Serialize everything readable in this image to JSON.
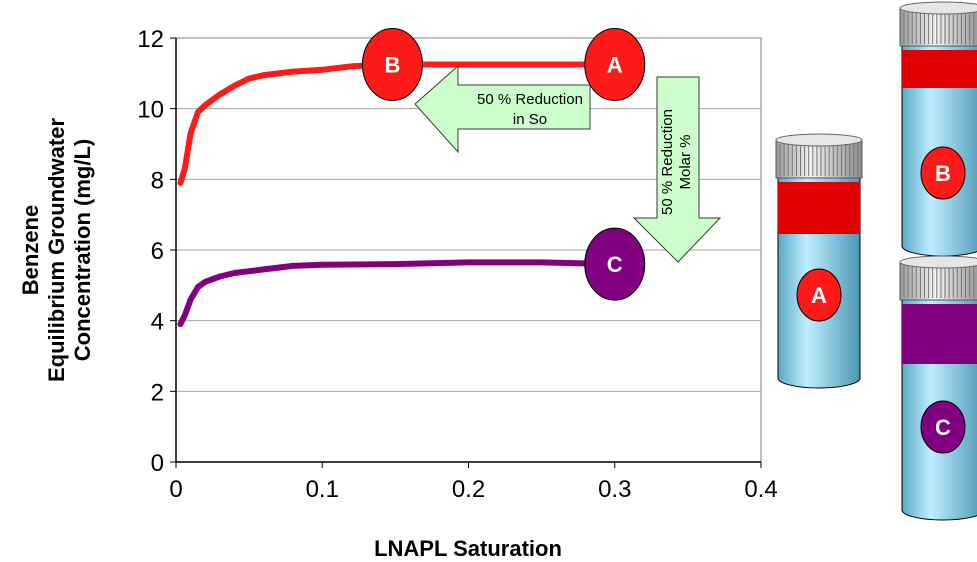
{
  "chart_data": {
    "type": "line",
    "xlabel": "LNAPL Saturation",
    "ylabel_lines": [
      "Benzene",
      "Equilibrium Groundwater",
      "Concentration (mg/L)"
    ],
    "xlim": [
      0,
      0.4
    ],
    "ylim": [
      0,
      12
    ],
    "x_ticks": [
      "0",
      "0.1",
      "0.2",
      "0.3",
      "0.4"
    ],
    "y_ticks": [
      "0",
      "2",
      "4",
      "6",
      "8",
      "10",
      "12"
    ],
    "grid": "horizontal",
    "series": [
      {
        "color": "#ff1a1a",
        "points": [
          [
            0.003,
            7.9
          ],
          [
            0.006,
            8.3
          ],
          [
            0.01,
            9.3
          ],
          [
            0.015,
            9.9
          ],
          [
            0.02,
            10.1
          ],
          [
            0.03,
            10.4
          ],
          [
            0.04,
            10.65
          ],
          [
            0.05,
            10.85
          ],
          [
            0.06,
            10.95
          ],
          [
            0.08,
            11.05
          ],
          [
            0.1,
            11.1
          ],
          [
            0.12,
            11.2
          ],
          [
            0.15,
            11.25
          ],
          [
            0.2,
            11.25
          ],
          [
            0.25,
            11.25
          ],
          [
            0.3,
            11.25
          ]
        ]
      },
      {
        "color": "#800080",
        "points": [
          [
            0.003,
            3.9
          ],
          [
            0.006,
            4.15
          ],
          [
            0.01,
            4.6
          ],
          [
            0.015,
            4.95
          ],
          [
            0.02,
            5.1
          ],
          [
            0.03,
            5.25
          ],
          [
            0.04,
            5.35
          ],
          [
            0.05,
            5.4
          ],
          [
            0.06,
            5.45
          ],
          [
            0.08,
            5.55
          ],
          [
            0.1,
            5.58
          ],
          [
            0.15,
            5.6
          ],
          [
            0.2,
            5.65
          ],
          [
            0.25,
            5.65
          ],
          [
            0.3,
            5.6
          ]
        ]
      }
    ],
    "markers": [
      {
        "label": "A",
        "x": 0.3,
        "y": 11.25,
        "fill": "#ff1a1a"
      },
      {
        "label": "B",
        "x": 0.148,
        "y": 11.25,
        "fill": "#ff1a1a"
      },
      {
        "label": "C",
        "x": 0.3,
        "y": 5.6,
        "fill": "#800080"
      }
    ],
    "annotations": [
      {
        "text_lines": [
          "50 % Reduction",
          "in So"
        ],
        "direction": "left",
        "fill": "#ccffcc"
      },
      {
        "text_lines": [
          "50 % Reduction",
          "Molar %"
        ],
        "direction": "down",
        "fill": "#ccffcc"
      }
    ]
  },
  "jars": [
    {
      "label": "A",
      "band_color": "#e00000",
      "label_fill": "#ff1a1a",
      "body_color": "#8fd8ee"
    },
    {
      "label": "B",
      "band_color": "#e00000",
      "label_fill": "#ff1a1a",
      "body_color": "#8fd8ee"
    },
    {
      "label": "C",
      "band_color": "#800080",
      "label_fill": "#800080",
      "body_color": "#8fd8ee"
    }
  ]
}
